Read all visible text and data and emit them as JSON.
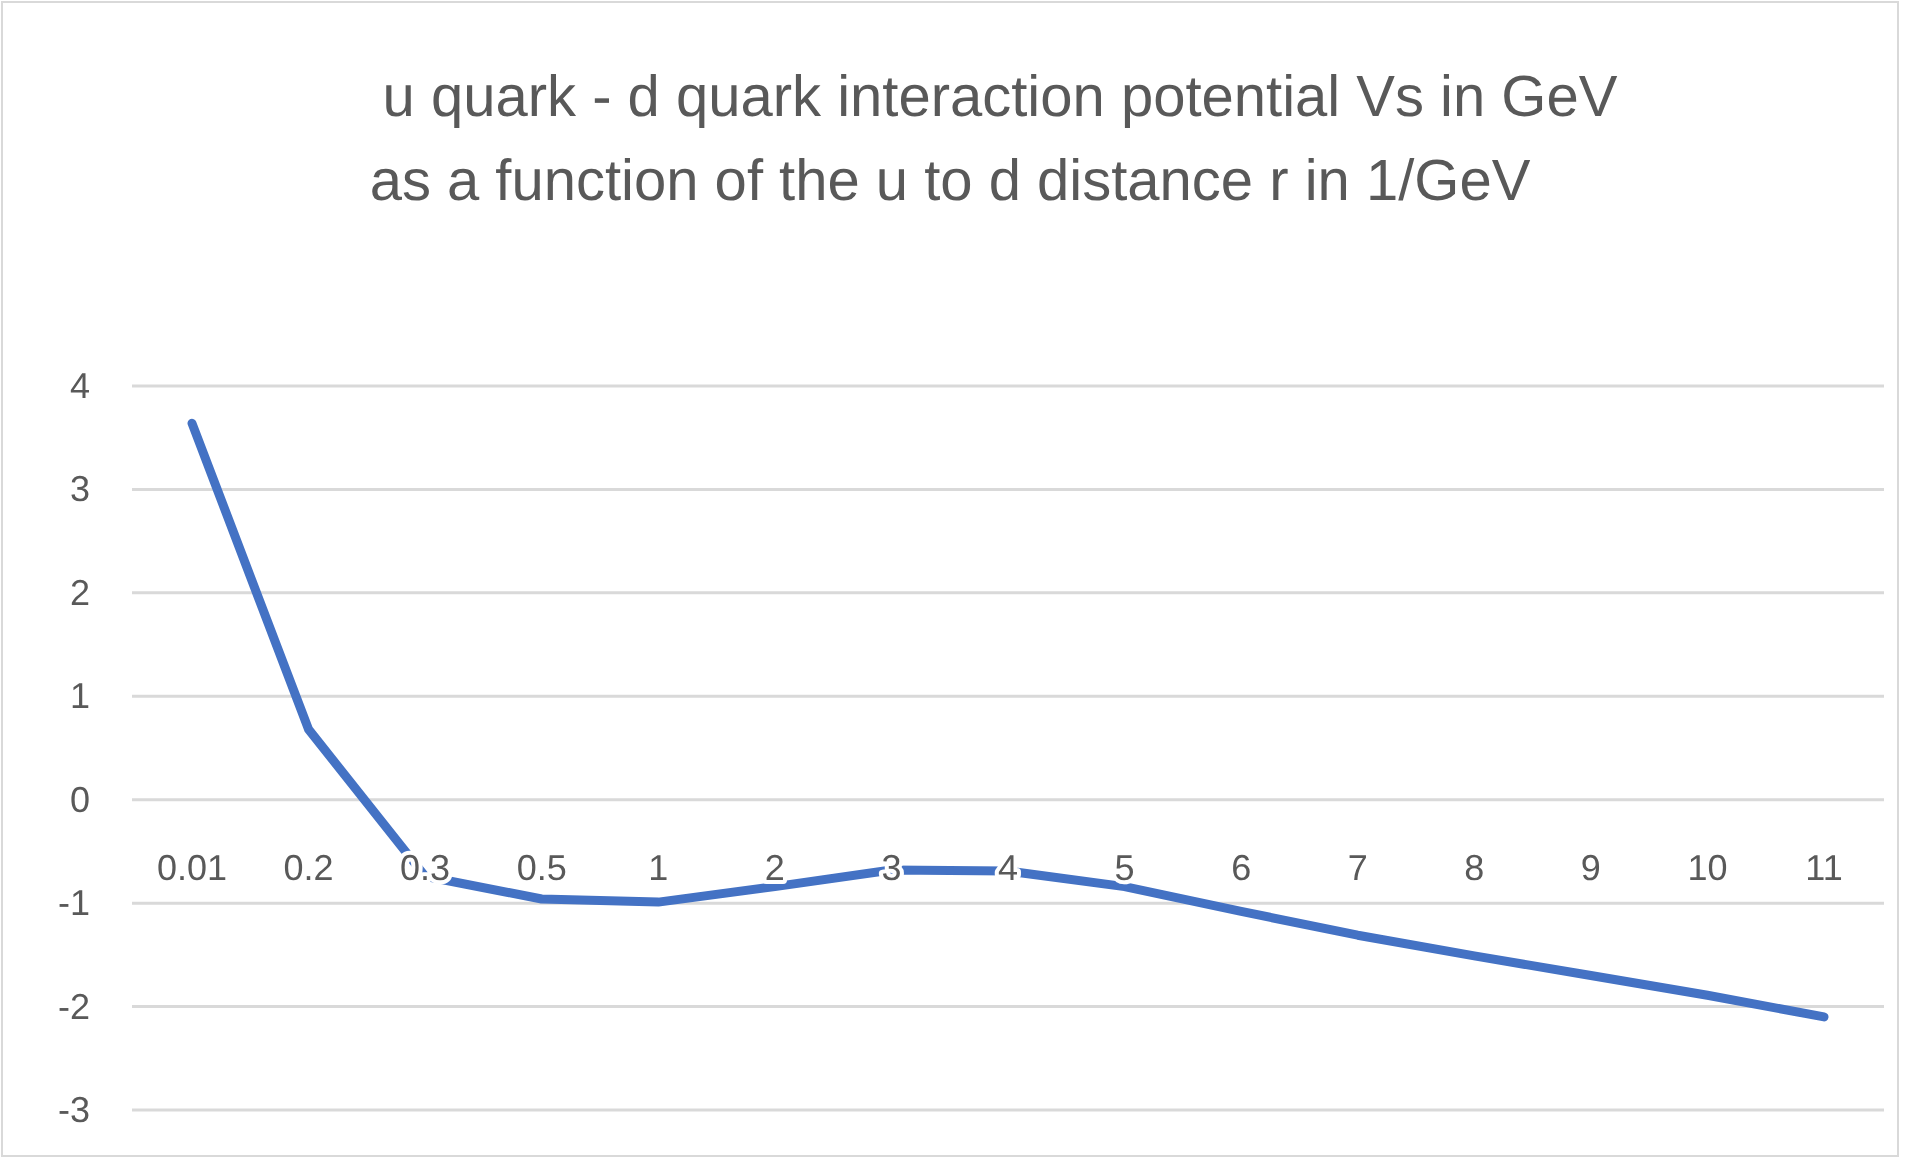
{
  "chart_data": {
    "type": "line",
    "title": "u quark - d quark interaction potential Vs in GeV\nas a function of the u to d distance r in 1/GeV",
    "categories": [
      "0.01",
      "0.2",
      "0.3",
      "0.5",
      "1",
      "2",
      "3",
      "4",
      "5",
      "6",
      "7",
      "8",
      "9",
      "10",
      "11"
    ],
    "series": [
      {
        "color": "#4472c4",
        "values": [
          3.64,
          0.68,
          -0.74,
          -0.96,
          -0.99,
          -0.84,
          -0.68,
          -0.69,
          -0.84,
          -1.08,
          -1.31,
          -1.51,
          -1.7,
          -1.89,
          -2.1
        ]
      }
    ],
    "ylim": [
      -3,
      4
    ],
    "yticks": [
      -3,
      -2,
      -1,
      0,
      1,
      2,
      3,
      4
    ],
    "grid": "y",
    "marker": "none",
    "line_style": "solid"
  }
}
